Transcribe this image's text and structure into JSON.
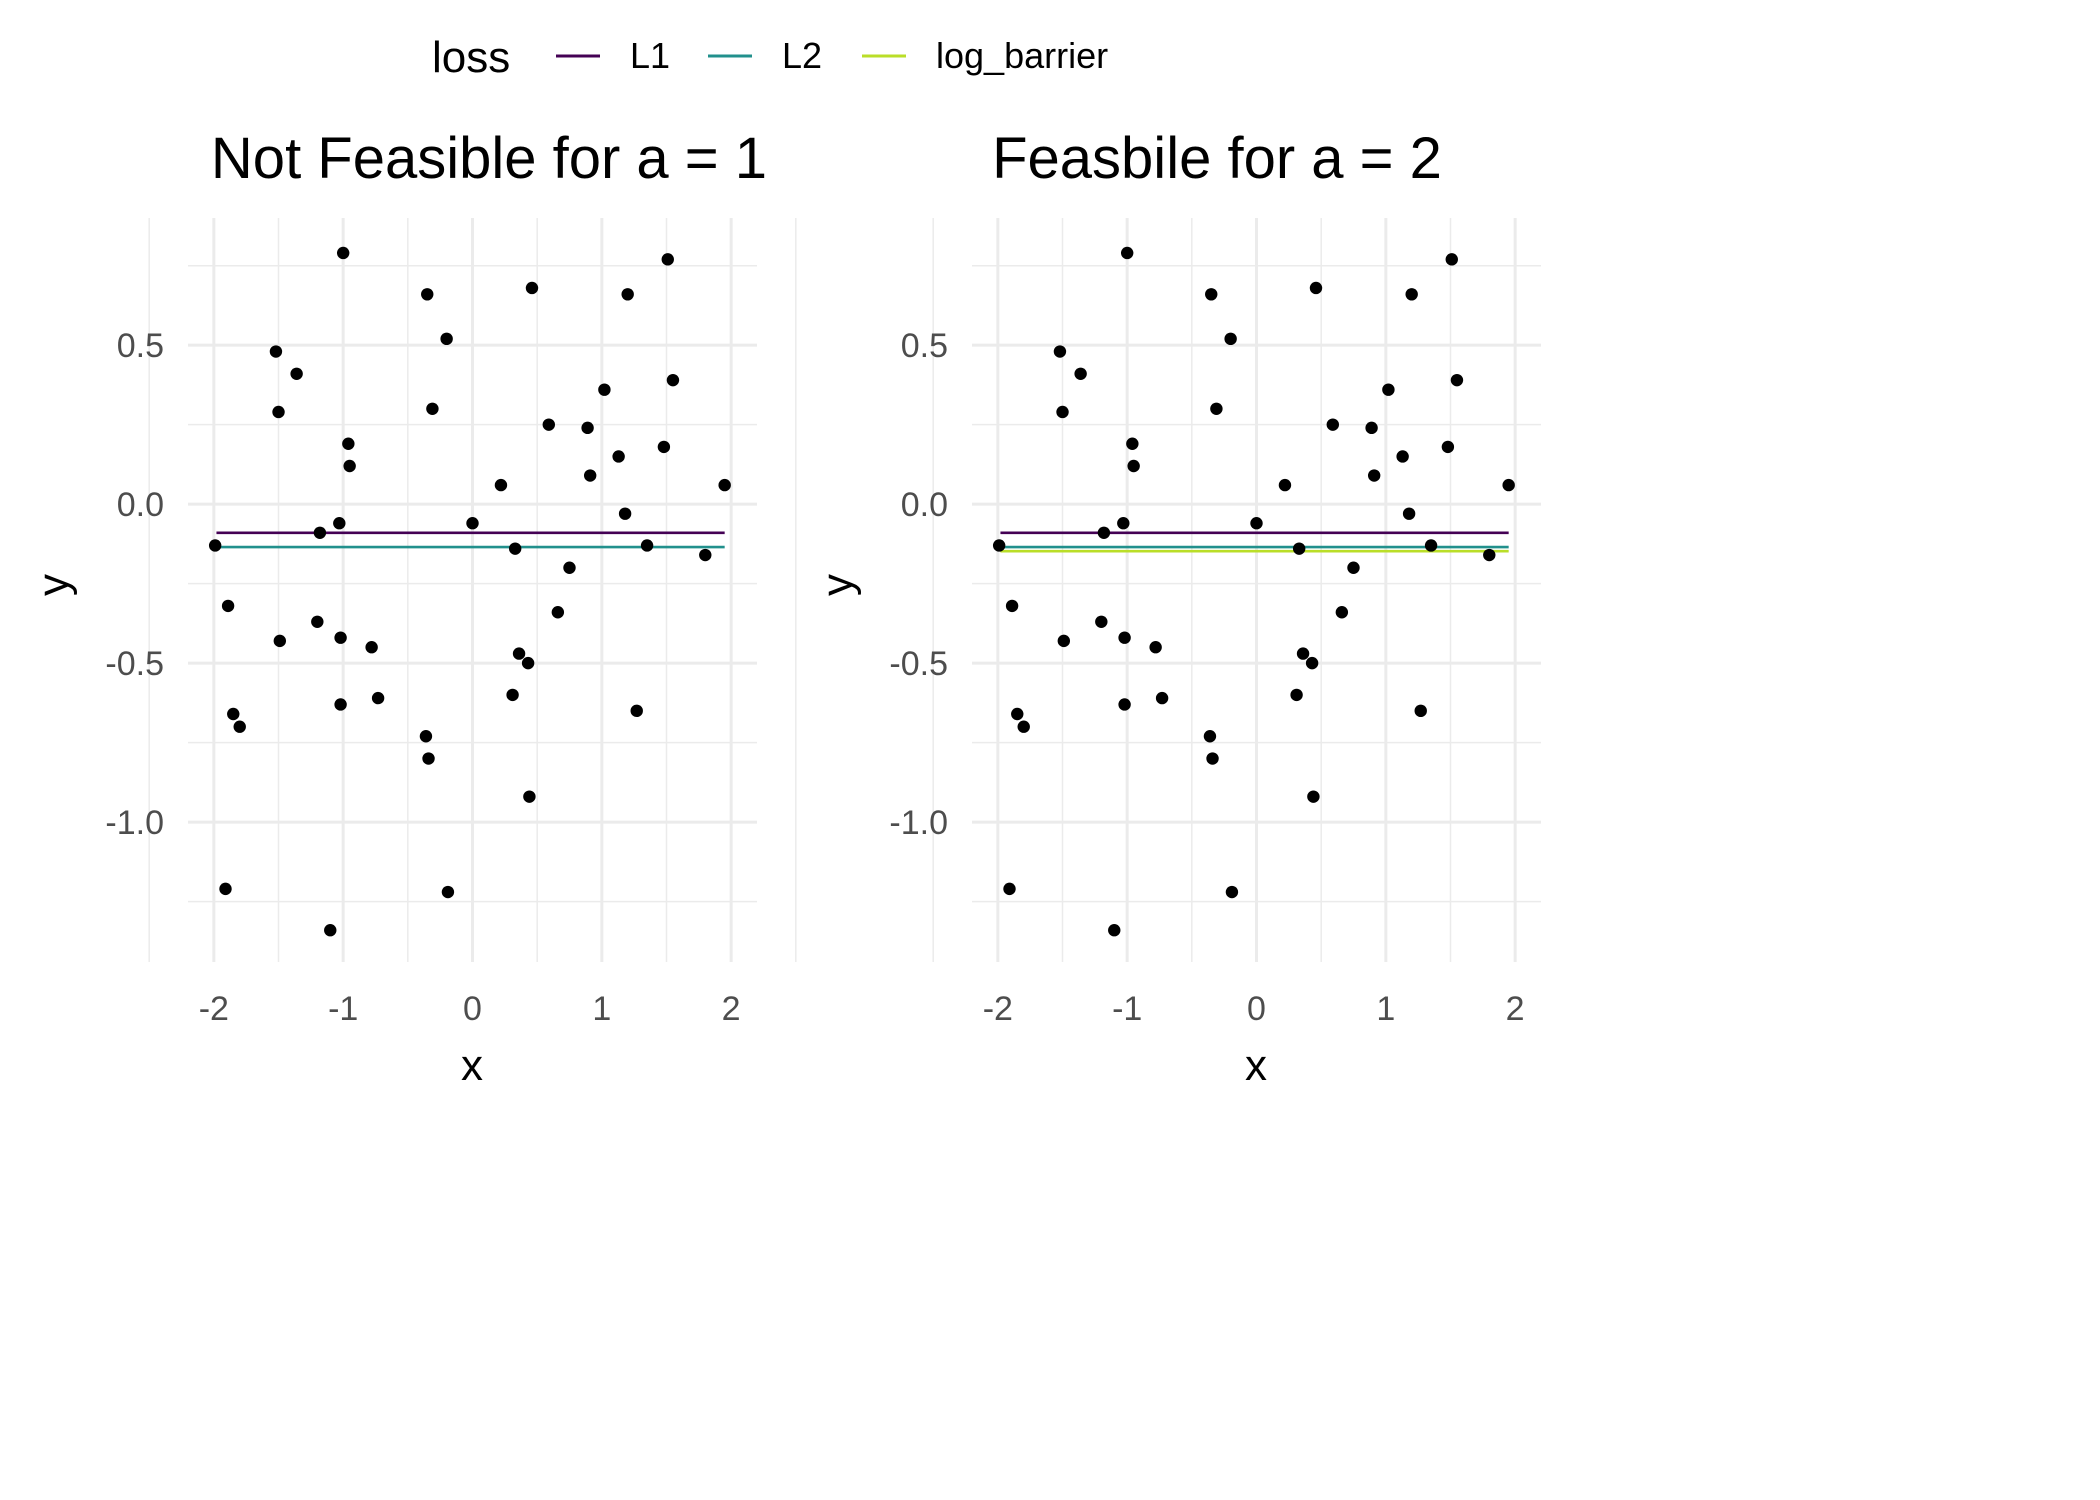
{
  "legend": {
    "title": "loss",
    "entries": [
      {
        "name": "L1",
        "color": "#440154"
      },
      {
        "name": "L2",
        "color": "#21908C"
      },
      {
        "name": "log_barrier",
        "color": "#BADE28"
      }
    ]
  },
  "chart_data": [
    {
      "type": "scatter",
      "title": "Not Feasible for a = 1",
      "xlabel": "x",
      "ylabel": "y",
      "xlim": [
        -2.2,
        2.2
      ],
      "ylim": [
        -1.44,
        0.9
      ],
      "xticks": [
        -2,
        -1,
        0,
        1,
        2
      ],
      "xtick_labels": [
        "-2",
        "-1",
        "0",
        "1",
        "2"
      ],
      "yticks": [
        -1.0,
        -0.5,
        0.0,
        0.5
      ],
      "ytick_labels": [
        "-1.0",
        "-0.5",
        "0.0",
        "0.5"
      ],
      "grid": true,
      "lines": [
        {
          "loss": "L1",
          "y": -0.09,
          "x_range": [
            -1.98,
            1.95
          ]
        },
        {
          "loss": "L2",
          "y": -0.135,
          "x_range": [
            -1.98,
            1.95
          ]
        }
      ],
      "points": {
        "x": [
          -1.99,
          -1.91,
          -1.89,
          -1.85,
          -1.8,
          -1.52,
          -1.5,
          -1.49,
          -1.36,
          -1.2,
          -1.18,
          -1.1,
          -1.03,
          -1.02,
          -1.02,
          -1.0,
          -0.96,
          -0.95,
          -0.78,
          -0.73,
          -0.36,
          -0.35,
          -0.34,
          -0.31,
          -0.2,
          -0.19,
          0.0,
          0.22,
          0.31,
          0.33,
          0.36,
          0.43,
          0.44,
          0.46,
          0.59,
          0.66,
          0.75,
          0.89,
          0.91,
          1.02,
          1.13,
          1.18,
          1.2,
          1.27,
          1.35,
          1.48,
          1.51,
          1.55,
          1.8,
          1.95
        ],
        "y": [
          -0.13,
          -1.21,
          -0.32,
          -0.66,
          -0.7,
          0.48,
          0.29,
          -0.43,
          0.41,
          -0.37,
          -0.09,
          -1.34,
          -0.06,
          -0.42,
          -0.63,
          0.79,
          0.19,
          0.12,
          -0.45,
          -0.61,
          -0.73,
          0.66,
          -0.8,
          0.3,
          0.52,
          -1.22,
          -0.06,
          0.06,
          -0.6,
          -0.14,
          -0.47,
          -0.5,
          -0.92,
          0.68,
          0.25,
          -0.34,
          -0.2,
          0.24,
          0.09,
          0.36,
          0.15,
          -0.03,
          0.66,
          -0.65,
          -0.13,
          0.18,
          0.77,
          0.39,
          -0.16,
          0.06
        ]
      }
    },
    {
      "type": "scatter",
      "title": "Feasbile for a = 2",
      "xlabel": "x",
      "ylabel": "y",
      "xlim": [
        -2.2,
        2.2
      ],
      "ylim": [
        -1.44,
        0.9
      ],
      "xticks": [
        -2,
        -1,
        0,
        1,
        2
      ],
      "xtick_labels": [
        "-2",
        "-1",
        "0",
        "1",
        "2"
      ],
      "yticks": [
        -1.0,
        -0.5,
        0.0,
        0.5
      ],
      "ytick_labels": [
        "-1.0",
        "-0.5",
        "0.0",
        "0.5"
      ],
      "grid": true,
      "lines": [
        {
          "loss": "L1",
          "y": -0.09,
          "x_range": [
            -1.98,
            1.95
          ]
        },
        {
          "loss": "L2",
          "y": -0.135,
          "x_range": [
            -1.98,
            1.95
          ]
        },
        {
          "loss": "log_barrier",
          "y": -0.148,
          "x_range": [
            -1.98,
            1.95
          ]
        }
      ],
      "points": {
        "x": [
          -1.99,
          -1.91,
          -1.89,
          -1.85,
          -1.8,
          -1.52,
          -1.5,
          -1.49,
          -1.36,
          -1.2,
          -1.18,
          -1.1,
          -1.03,
          -1.02,
          -1.02,
          -1.0,
          -0.96,
          -0.95,
          -0.78,
          -0.73,
          -0.36,
          -0.35,
          -0.34,
          -0.31,
          -0.2,
          -0.19,
          0.0,
          0.22,
          0.31,
          0.33,
          0.36,
          0.43,
          0.44,
          0.46,
          0.59,
          0.66,
          0.75,
          0.89,
          0.91,
          1.02,
          1.13,
          1.18,
          1.2,
          1.27,
          1.35,
          1.48,
          1.51,
          1.55,
          1.8,
          1.95
        ],
        "y": [
          -0.13,
          -1.21,
          -0.32,
          -0.66,
          -0.7,
          0.48,
          0.29,
          -0.43,
          0.41,
          -0.37,
          -0.09,
          -1.34,
          -0.06,
          -0.42,
          -0.63,
          0.79,
          0.19,
          0.12,
          -0.45,
          -0.61,
          -0.73,
          0.66,
          -0.8,
          0.3,
          0.52,
          -1.22,
          -0.06,
          0.06,
          -0.6,
          -0.14,
          -0.47,
          -0.5,
          -0.92,
          0.68,
          0.25,
          -0.34,
          -0.2,
          0.24,
          0.09,
          0.36,
          0.15,
          -0.03,
          0.66,
          -0.65,
          -0.13,
          0.18,
          0.77,
          0.39,
          -0.16,
          0.06
        ]
      }
    }
  ]
}
